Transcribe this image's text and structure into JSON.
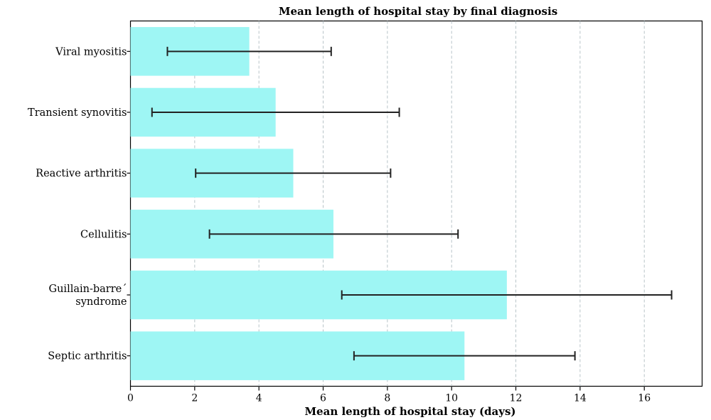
{
  "chart_data": {
    "type": "bar",
    "orientation": "horizontal",
    "title": "Mean length of hospital stay by final diagnosis",
    "xlabel": "Mean length of hospital stay (days)",
    "ylabel": "",
    "xlim": [
      0,
      17.8
    ],
    "xticks": [
      "0",
      "2",
      "4",
      "6",
      "8",
      "10",
      "12",
      "14",
      "16"
    ],
    "grid": "vertical dashed",
    "bar_color": "#9ef6f4",
    "error_color": "#222222",
    "categories": [
      {
        "label": "Viral myositis",
        "mean": 3.7,
        "err_low": 1.15,
        "err_high": 6.25
      },
      {
        "label": "Transient synovitis",
        "mean": 4.52,
        "err_low": 0.67,
        "err_high": 8.37
      },
      {
        "label": "Reactive arthritis",
        "mean": 5.07,
        "err_low": 2.03,
        "err_high": 8.1
      },
      {
        "label": "Cellulitis",
        "mean": 6.32,
        "err_low": 2.46,
        "err_high": 10.2
      },
      {
        "label": "Guillain-barre´ syndrome",
        "label_lines": [
          "Guillain-barre´",
          "syndrome"
        ],
        "mean": 11.72,
        "err_low": 6.58,
        "err_high": 16.85
      },
      {
        "label": "Septic arthritis",
        "mean": 10.4,
        "err_low": 6.96,
        "err_high": 13.84
      }
    ]
  }
}
